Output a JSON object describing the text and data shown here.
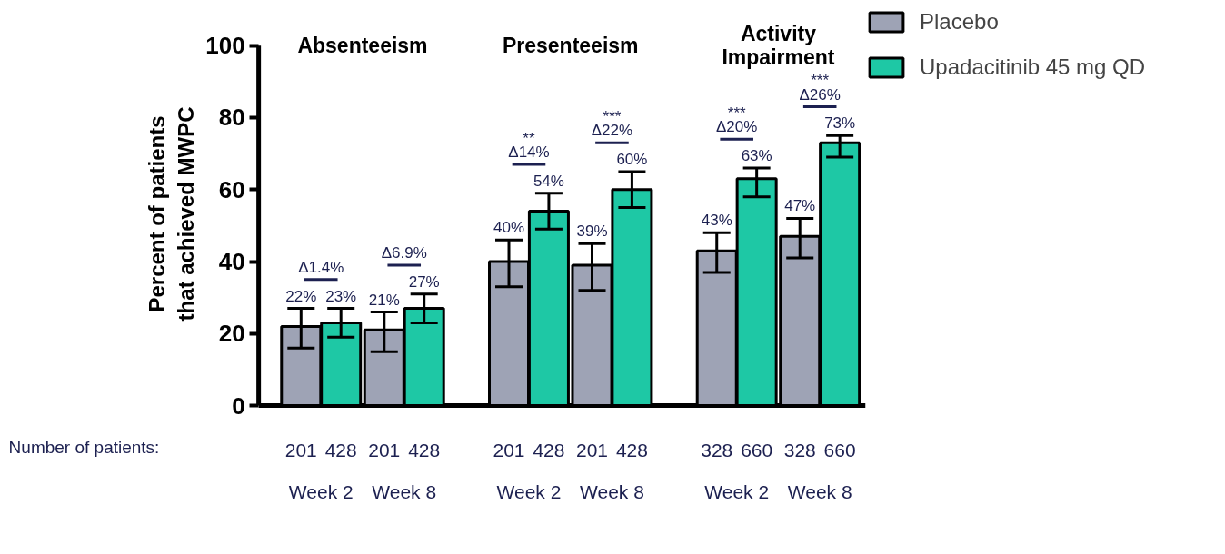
{
  "chart_data": {
    "type": "bar",
    "ylabel": "Percent of patients that achieved MWPC",
    "categories": [
      "Week 2",
      "Week 8",
      "Week 2",
      "Week 8",
      "Week 2",
      "Week 8"
    ],
    "series": [
      {
        "name": "Placebo",
        "color": "#9ea3b5",
        "values": [
          22,
          21,
          40,
          39,
          43,
          47
        ],
        "errors": [
          [
            16,
            27
          ],
          [
            15,
            26
          ],
          [
            33,
            46
          ],
          [
            32,
            45
          ],
          [
            37,
            48
          ],
          [
            41,
            52
          ]
        ],
        "value_labels": [
          "22%",
          "21%",
          "40%",
          "39%",
          "43%",
          "47%"
        ]
      },
      {
        "name": "Upadacitinib 45 mg QD",
        "color": "#1ec8a5",
        "values": [
          23,
          27,
          54,
          60,
          63,
          73
        ],
        "errors": [
          [
            19,
            27
          ],
          [
            23,
            31
          ],
          [
            49,
            59
          ],
          [
            55,
            65
          ],
          [
            58,
            66
          ],
          [
            69,
            75
          ]
        ],
        "value_labels": [
          "23%",
          "27%",
          "54%",
          "60%",
          "63%",
          "73%"
        ]
      }
    ],
    "ylim": [
      0,
      100
    ],
    "yticks": [
      0,
      20,
      40,
      60,
      80,
      100
    ],
    "grid": false,
    "legend": "top right",
    "annotations": [
      "Number of patients:",
      "Absenteeism",
      "Presenteeism",
      "Activity Impairment",
      "Δ1.4%",
      "Δ6.9%",
      "**\nΔ14%",
      "***\nΔ22%",
      "***\nΔ20%",
      "***\nΔ26%",
      "201",
      "428",
      "201",
      "428",
      "201",
      "428",
      "201",
      "428",
      "328",
      "660",
      "328",
      "660"
    ]
  }
}
